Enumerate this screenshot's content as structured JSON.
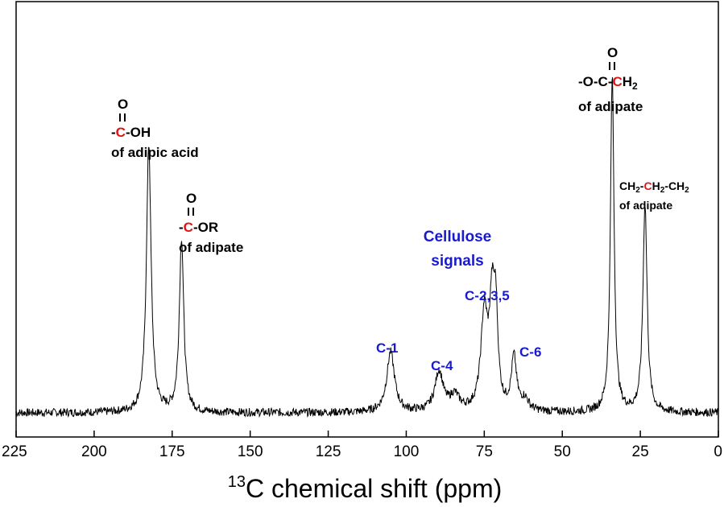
{
  "chart_data": {
    "type": "line",
    "xlabel_sup": "13",
    "xlabel": "C chemical shift (ppm)",
    "xlim": [
      225,
      0
    ],
    "x_reversed": true,
    "y_axis_visible": false,
    "grid": false,
    "xticks": [
      "225",
      "200",
      "175",
      "150",
      "125",
      "100",
      "75",
      "50",
      "25",
      "0"
    ],
    "peaks": [
      {
        "ppm": 182.5,
        "height": 0.71,
        "width": 0.9
      },
      {
        "ppm": 172.0,
        "height": 0.46,
        "width": 0.85
      },
      {
        "ppm": 105.0,
        "height": 0.16,
        "width": 1.5
      },
      {
        "ppm": 89.5,
        "height": 0.105,
        "width": 1.6
      },
      {
        "ppm": 84.5,
        "height": 0.04,
        "width": 1.8
      },
      {
        "ppm": 75.0,
        "height": 0.25,
        "width": 1.3
      },
      {
        "ppm": 72.5,
        "height": 0.26,
        "width": 1.0
      },
      {
        "ppm": 71.3,
        "height": 0.22,
        "width": 0.8
      },
      {
        "ppm": 65.5,
        "height": 0.14,
        "width": 1.0
      },
      {
        "ppm": 62.0,
        "height": 0.03,
        "width": 1.5
      },
      {
        "ppm": 34.0,
        "height": 0.89,
        "width": 0.7
      },
      {
        "ppm": 23.5,
        "height": 0.55,
        "width": 0.8
      }
    ],
    "colors": {
      "line": "#000000",
      "blue_label": "#1a1acd",
      "red_atom": "#e01414"
    },
    "annotations": {
      "acid": {
        "o": "O",
        "pre": "-",
        "c": "C",
        "post": "-OH",
        "label": "of adipic acid"
      },
      "ester": {
        "o": "O",
        "pre": "-",
        "c": "C",
        "post": "-OR",
        "label": "of adipate"
      },
      "och2": {
        "o": "O",
        "pre": "-O-C-",
        "c": "C",
        "h": "H",
        "sub": "2",
        "label": "of adipate"
      },
      "ch2": {
        "p1": "CH",
        "s1": "2",
        "dash1": "-",
        "c": "C",
        "p2": "H",
        "s2": "2",
        "dash2": "-CH",
        "s3": "2",
        "label": "of adipate"
      },
      "cellulose_line1": "Cellulose",
      "cellulose_line2": "signals",
      "c1": "C-1",
      "c4": "C-4",
      "c235": "C-2,3,5",
      "c6": "C-6"
    }
  }
}
